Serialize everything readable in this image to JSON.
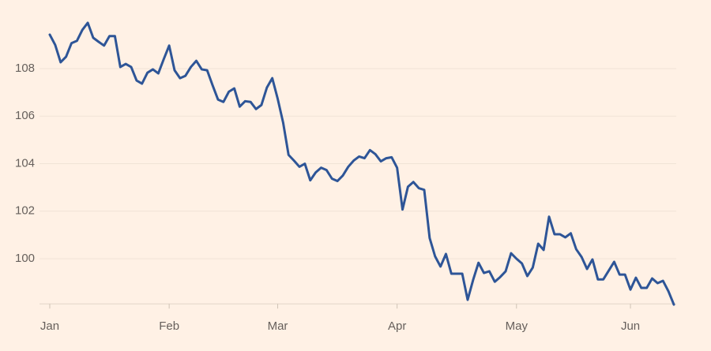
{
  "chart_data": {
    "type": "line",
    "categories": [
      "Jan",
      null,
      null,
      null,
      null,
      null,
      null,
      null,
      null,
      null,
      null,
      null,
      null,
      null,
      null,
      null,
      null,
      null,
      null,
      null,
      null,
      null,
      "Feb",
      null,
      null,
      null,
      null,
      null,
      null,
      null,
      null,
      null,
      null,
      null,
      null,
      null,
      null,
      null,
      null,
      null,
      null,
      null,
      "Mar",
      null,
      null,
      null,
      null,
      null,
      null,
      null,
      null,
      null,
      null,
      null,
      null,
      null,
      null,
      null,
      null,
      null,
      null,
      null,
      null,
      null,
      "Apr",
      null,
      null,
      null,
      null,
      null,
      null,
      null,
      null,
      null,
      null,
      null,
      null,
      null,
      null,
      null,
      null,
      null,
      null,
      null,
      null,
      null,
      "May",
      null,
      null,
      null,
      null,
      null,
      null,
      null,
      null,
      null,
      null,
      null,
      null,
      null,
      null,
      null,
      null,
      null,
      null,
      null,
      null,
      "Jun",
      null,
      null,
      null,
      null,
      null,
      null,
      null,
      null
    ],
    "values": [
      109.43,
      109.0,
      108.27,
      108.5,
      109.07,
      109.17,
      109.63,
      109.93,
      109.3,
      109.13,
      108.97,
      109.37,
      109.37,
      108.07,
      108.2,
      108.07,
      107.5,
      107.37,
      107.83,
      107.97,
      107.8,
      108.4,
      108.97,
      107.93,
      107.6,
      107.7,
      108.07,
      108.33,
      107.97,
      107.93,
      107.3,
      106.7,
      106.6,
      107.03,
      107.17,
      106.4,
      106.63,
      106.6,
      106.3,
      106.47,
      107.2,
      107.6,
      106.73,
      105.73,
      104.37,
      104.13,
      103.87,
      104.0,
      103.3,
      103.63,
      103.83,
      103.73,
      103.37,
      103.27,
      103.5,
      103.87,
      104.13,
      104.3,
      104.23,
      104.57,
      104.4,
      104.1,
      104.23,
      104.27,
      103.83,
      102.07,
      103.03,
      103.23,
      102.97,
      102.9,
      100.87,
      100.1,
      99.67,
      100.2,
      99.37,
      99.37,
      99.37,
      98.27,
      99.1,
      99.83,
      99.4,
      99.47,
      99.03,
      99.23,
      99.47,
      100.23,
      100.0,
      99.8,
      99.27,
      99.63,
      100.63,
      100.37,
      101.77,
      101.03,
      101.03,
      100.9,
      101.07,
      100.4,
      100.07,
      99.57,
      99.97,
      99.13,
      99.13,
      99.5,
      99.87,
      99.33,
      99.33,
      98.7,
      99.2,
      98.77,
      98.77,
      99.17,
      98.97,
      99.07,
      98.63,
      98.07
    ],
    "color": "#2e5597",
    "ylim": [
      98.1,
      110
    ],
    "yticks": [
      100,
      102,
      104,
      106,
      108
    ],
    "grid": true
  }
}
